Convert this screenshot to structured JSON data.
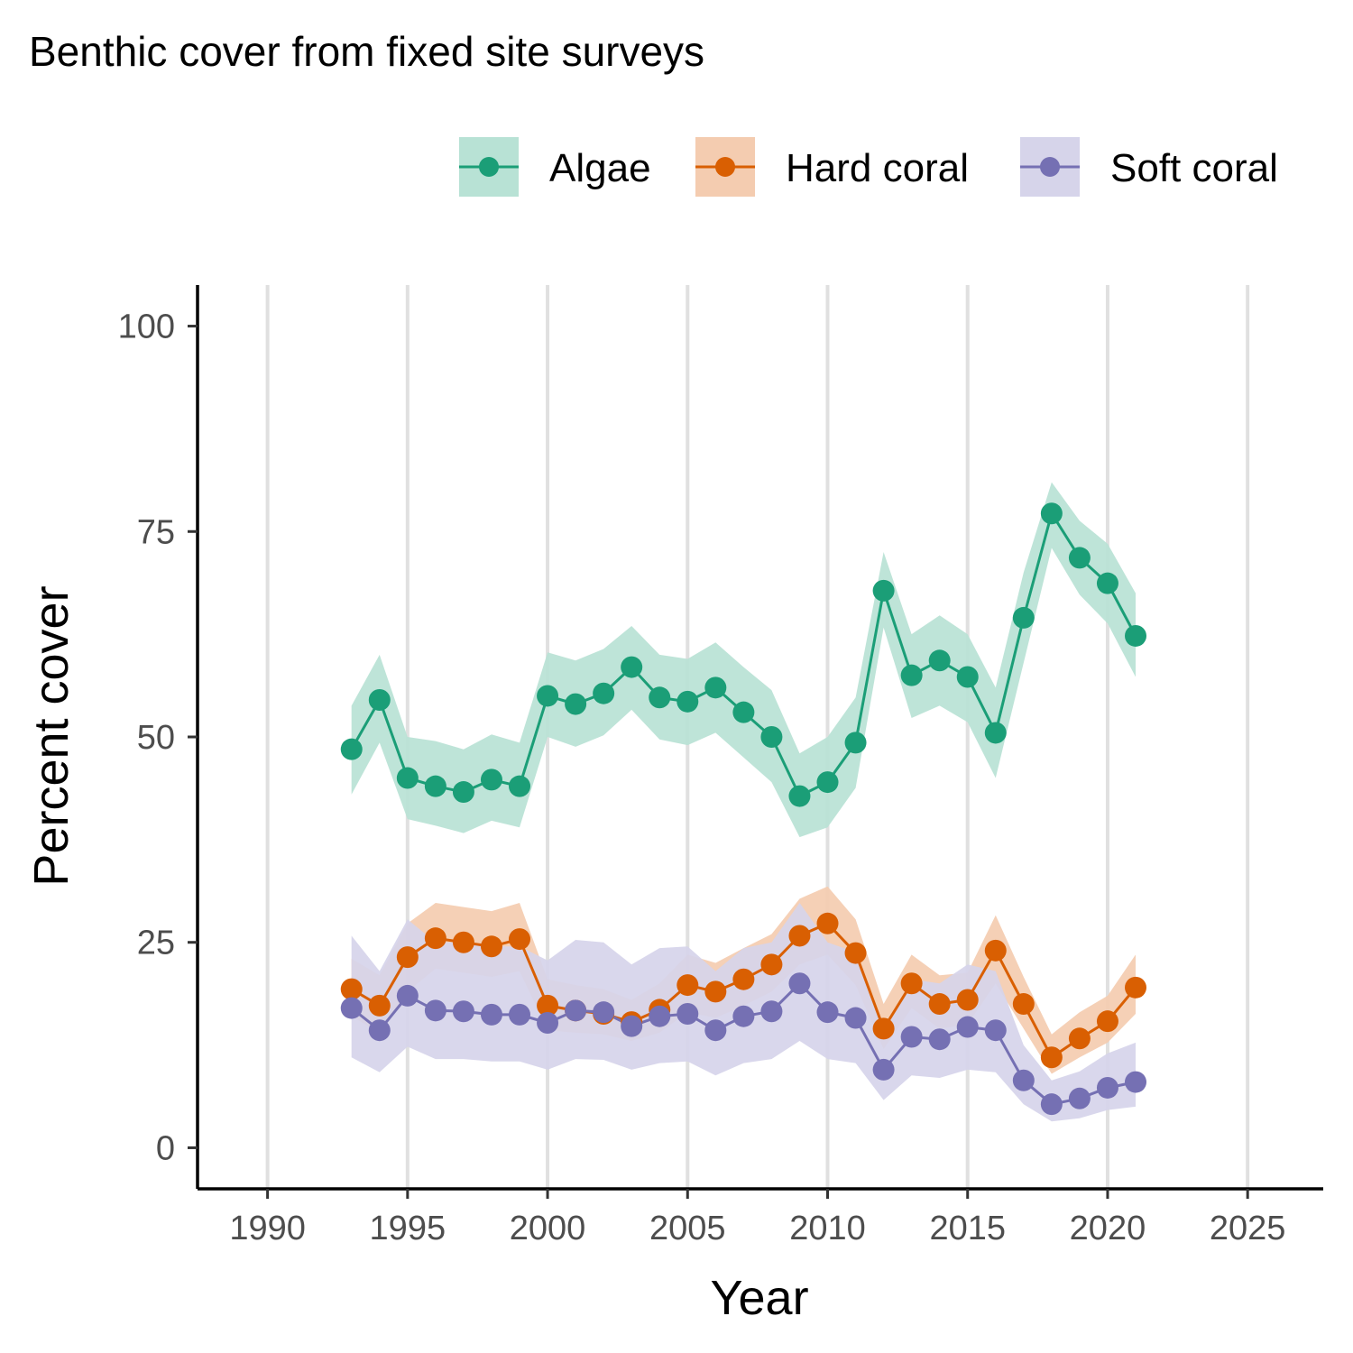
{
  "chart_data": {
    "type": "line",
    "title": "Benthic cover from fixed site surveys",
    "xlabel": "Year",
    "ylabel": "Percent cover",
    "xlim": [
      1987.5,
      2027.7
    ],
    "ylim": [
      -5,
      105
    ],
    "xticks": [
      1990,
      1995,
      2000,
      2005,
      2010,
      2015,
      2020,
      2025
    ],
    "yticks": [
      0,
      25,
      50,
      75,
      100
    ],
    "grid": "vertical major lines",
    "legend_position": "top-right",
    "x": [
      1993,
      1994,
      1995,
      1996,
      1997,
      1998,
      1999,
      2000,
      2001,
      2002,
      2003,
      2004,
      2005,
      2006,
      2007,
      2008,
      2009,
      2010,
      2011,
      2012,
      2013,
      2014,
      2015,
      2016,
      2017,
      2018,
      2019,
      2020,
      2021
    ],
    "series": [
      {
        "name": "Algae",
        "color": "#1b9e77",
        "band_color": "#b8e2d5",
        "values": [
          48.5,
          54.5,
          45.0,
          44.0,
          43.3,
          44.8,
          44.0,
          55.0,
          54.0,
          55.3,
          58.5,
          54.8,
          54.3,
          56.0,
          53.0,
          50.0,
          42.8,
          44.5,
          49.3,
          67.8,
          57.5,
          59.3,
          57.3,
          50.5,
          64.5,
          77.2,
          71.8,
          68.7,
          62.3
        ],
        "lower": [
          43.0,
          49.3,
          40.0,
          39.2,
          38.3,
          39.8,
          39.0,
          50.0,
          48.8,
          50.2,
          53.3,
          49.7,
          49.0,
          50.5,
          47.5,
          44.5,
          37.8,
          39.0,
          43.8,
          63.3,
          52.3,
          53.8,
          51.8,
          45.0,
          59.0,
          73.0,
          67.3,
          63.8,
          57.3
        ],
        "upper": [
          53.8,
          60.0,
          50.0,
          49.5,
          48.5,
          50.3,
          49.3,
          60.3,
          59.3,
          60.7,
          63.5,
          60.0,
          59.5,
          61.5,
          58.5,
          55.7,
          48.0,
          50.0,
          54.8,
          72.5,
          62.5,
          64.8,
          62.5,
          56.0,
          70.0,
          81.0,
          76.3,
          73.5,
          67.5
        ]
      },
      {
        "name": "Hard coral",
        "color": "#d95f02",
        "band_color": "#f4ccb0",
        "values": [
          19.3,
          17.3,
          23.2,
          25.5,
          25.0,
          24.5,
          25.4,
          17.3,
          16.7,
          16.3,
          15.3,
          16.8,
          19.8,
          19.0,
          20.5,
          22.3,
          25.8,
          27.3,
          23.7,
          14.5,
          20.0,
          17.5,
          18.0,
          24.0,
          17.5,
          11.0,
          13.3,
          15.4,
          19.5
        ],
        "lower": [
          16.0,
          14.0,
          19.0,
          21.8,
          21.3,
          20.8,
          21.5,
          14.3,
          14.0,
          13.8,
          13.0,
          14.0,
          16.5,
          15.8,
          17.3,
          19.0,
          22.3,
          23.5,
          19.8,
          12.0,
          17.0,
          14.5,
          15.0,
          20.0,
          14.5,
          9.0,
          11.0,
          12.8,
          16.3
        ],
        "upper": [
          23.0,
          21.0,
          27.3,
          29.8,
          29.3,
          28.8,
          29.8,
          20.5,
          19.8,
          19.3,
          18.0,
          20.0,
          23.5,
          22.5,
          24.3,
          26.0,
          30.3,
          31.8,
          27.8,
          17.5,
          23.5,
          21.0,
          21.3,
          28.3,
          20.8,
          13.8,
          16.5,
          18.5,
          23.5
        ]
      },
      {
        "name": "Soft coral",
        "color": "#7570b3",
        "band_color": "#d6d4ea",
        "values": [
          17.0,
          14.3,
          18.5,
          16.7,
          16.6,
          16.2,
          16.2,
          15.2,
          16.7,
          16.5,
          14.8,
          16.0,
          16.3,
          14.3,
          16.0,
          16.6,
          20.0,
          16.5,
          15.8,
          9.5,
          13.5,
          13.2,
          14.7,
          14.3,
          8.2,
          5.3,
          6.0,
          7.3,
          8.0
        ],
        "lower": [
          11.0,
          9.2,
          12.3,
          10.8,
          10.8,
          10.5,
          10.5,
          9.5,
          10.8,
          10.7,
          9.5,
          10.3,
          10.5,
          8.8,
          10.3,
          10.8,
          13.0,
          10.8,
          10.3,
          5.8,
          8.8,
          8.5,
          9.5,
          9.2,
          5.3,
          3.2,
          3.6,
          4.6,
          5.0
        ],
        "upper": [
          25.8,
          21.5,
          27.8,
          25.0,
          25.0,
          24.5,
          24.5,
          22.8,
          25.3,
          25.0,
          22.3,
          24.3,
          24.5,
          21.5,
          24.3,
          25.0,
          29.8,
          25.0,
          23.8,
          14.5,
          20.5,
          20.0,
          22.3,
          21.5,
          12.5,
          8.2,
          9.3,
          11.5,
          12.8
        ]
      }
    ]
  }
}
